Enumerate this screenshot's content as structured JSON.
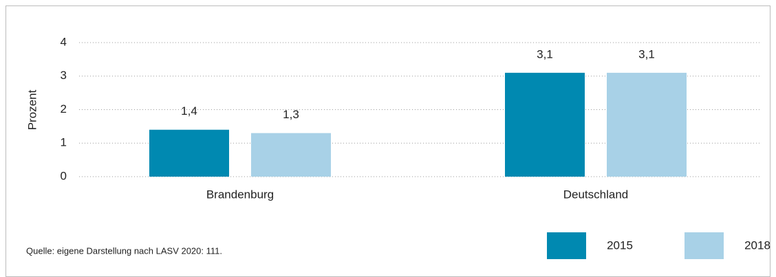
{
  "chart_data": {
    "type": "bar",
    "categories": [
      "Brandenburg",
      "Deutschland"
    ],
    "series": [
      {
        "name": "2015",
        "color": "#0089b1",
        "values": [
          1.4,
          3.1
        ],
        "value_labels": [
          "1,4",
          "3,1"
        ]
      },
      {
        "name": "2018",
        "color": "#a8d1e7",
        "values": [
          1.3,
          3.1
        ],
        "value_labels": [
          "1,3",
          "3,1"
        ]
      }
    ],
    "ylabel": "Prozent",
    "ylim": [
      0,
      4
    ],
    "yticks": [
      0,
      1,
      2,
      3,
      4
    ],
    "grid": true,
    "source": "Quelle: eigene Darstellung nach LASV 2020: 111."
  }
}
